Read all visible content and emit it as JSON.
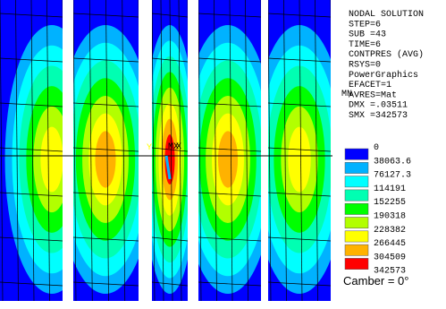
{
  "info_lines": [
    "NODAL SOLUTION",
    "STEP=6",
    "SUB =43",
    "TIME=6",
    "CONTPRES (AVG)",
    "RSYS=0",
    "PowerGraphics",
    "EFACET=1",
    "AVRES=Mat",
    "DMX =.03511",
    "SMX =342573"
  ],
  "legend": {
    "min_label": "0",
    "entries": [
      {
        "label": "38063.6",
        "color": "#0000ff"
      },
      {
        "label": "76127.3",
        "color": "#00b2ff"
      },
      {
        "label": "114191",
        "color": "#00ffff"
      },
      {
        "label": "152255",
        "color": "#00ffb2"
      },
      {
        "label": "190318",
        "color": "#00ff00"
      },
      {
        "label": "228382",
        "color": "#b2ff00"
      },
      {
        "label": "266445",
        "color": "#ffff00"
      },
      {
        "label": "304509",
        "color": "#ffb200"
      },
      {
        "label": "342573",
        "color": "#ff0000"
      }
    ]
  },
  "markers": {
    "min": "MN",
    "max": "MX",
    "axis_y": "Y",
    "axis_x": "X"
  },
  "annotation": "Camber = 0°"
}
